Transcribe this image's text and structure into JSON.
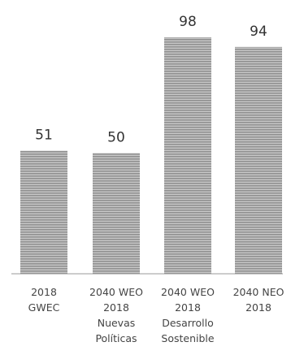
{
  "chart_data": {
    "type": "bar",
    "categories": [
      [
        "2018",
        "GWEC"
      ],
      [
        "2040 WEO",
        "2018",
        "Nuevas",
        "Políticas"
      ],
      [
        "2040 WEO",
        "2018",
        "Desarrollo",
        "Sostenible"
      ],
      [
        "2040 NEO",
        "2018"
      ]
    ],
    "values": [
      51,
      50,
      98,
      94
    ],
    "data_labels": [
      "51",
      "50",
      "98",
      "94"
    ],
    "title": "",
    "xlabel": "",
    "ylabel": "",
    "ylim": [
      0,
      100
    ],
    "grid": false,
    "legend": "none",
    "colors": {
      "bar": "#9a9a9a",
      "bar_stripe": "#c8c8c8",
      "baseline": "#999999"
    }
  }
}
